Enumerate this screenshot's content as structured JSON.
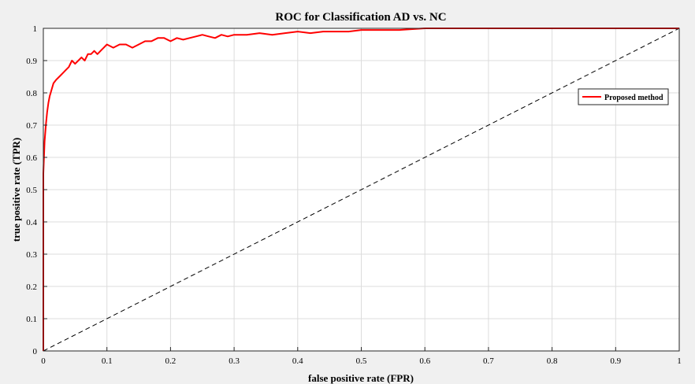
{
  "chart_data": {
    "type": "line",
    "title": "ROC for Classification AD vs. NC",
    "xlabel": "false positive rate (FPR)",
    "ylabel": "true positive rate (TPR)",
    "xlim": [
      0,
      1
    ],
    "ylim": [
      0,
      1
    ],
    "xticks": [
      "0",
      "0.1",
      "0.2",
      "0.3",
      "0.4",
      "0.5",
      "0.6",
      "0.7",
      "0.8",
      "0.9",
      "1"
    ],
    "yticks": [
      "0",
      "0.1",
      "0.2",
      "0.3",
      "0.4",
      "0.5",
      "0.6",
      "0.7",
      "0.8",
      "0.9",
      "1"
    ],
    "grid": true,
    "legend_position": "right",
    "series": [
      {
        "name": "Proposed method",
        "color": "#ff0000",
        "style": "solid",
        "x": [
          0,
          0,
          0.002,
          0.004,
          0.006,
          0.008,
          0.01,
          0.013,
          0.016,
          0.02,
          0.025,
          0.03,
          0.035,
          0.04,
          0.045,
          0.05,
          0.055,
          0.06,
          0.065,
          0.07,
          0.075,
          0.08,
          0.085,
          0.09,
          0.095,
          0.1,
          0.11,
          0.12,
          0.13,
          0.14,
          0.15,
          0.16,
          0.17,
          0.18,
          0.19,
          0.2,
          0.21,
          0.22,
          0.23,
          0.24,
          0.25,
          0.26,
          0.27,
          0.28,
          0.29,
          0.3,
          0.32,
          0.34,
          0.36,
          0.38,
          0.4,
          0.42,
          0.44,
          0.46,
          0.48,
          0.5,
          0.53,
          0.56,
          0.6,
          0.65,
          0.7,
          0.75,
          0.8,
          0.85,
          0.9,
          1
        ],
        "y": [
          0,
          0.55,
          0.65,
          0.7,
          0.74,
          0.77,
          0.79,
          0.81,
          0.83,
          0.84,
          0.85,
          0.86,
          0.87,
          0.88,
          0.9,
          0.89,
          0.9,
          0.91,
          0.9,
          0.92,
          0.92,
          0.93,
          0.92,
          0.93,
          0.94,
          0.95,
          0.94,
          0.95,
          0.95,
          0.94,
          0.95,
          0.96,
          0.96,
          0.97,
          0.97,
          0.96,
          0.97,
          0.965,
          0.97,
          0.975,
          0.98,
          0.975,
          0.97,
          0.98,
          0.975,
          0.98,
          0.98,
          0.985,
          0.98,
          0.985,
          0.99,
          0.985,
          0.99,
          0.99,
          0.99,
          0.995,
          0.995,
          0.995,
          1.0,
          1.0,
          1.0,
          1.0,
          1.0,
          1.0,
          1.0,
          1.0
        ]
      },
      {
        "color": "#000000",
        "style": "dashed",
        "x": [
          0,
          1
        ],
        "y": [
          0,
          1
        ]
      }
    ]
  }
}
